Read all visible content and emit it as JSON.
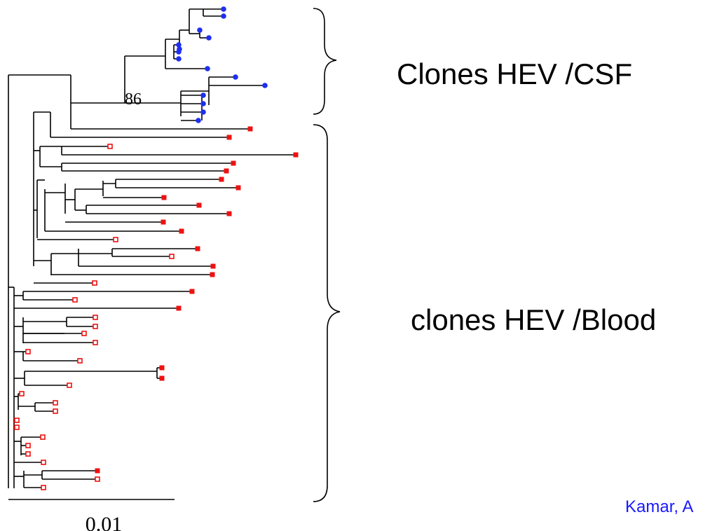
{
  "bootstrap_label": "86",
  "scale_bar_label": "0.01",
  "group_csf_label": "Clones HEV /CSF",
  "group_blood_label": "clones HEV /Blood",
  "citation": "Kamar, A",
  "colors": {
    "csf_marker": "#1f2ff0",
    "blood_marker": "#ee1111",
    "citation": "#1a1aff",
    "branch": "#000000"
  },
  "legend": {
    "csf_marker": "filled-circle",
    "blood_marker_filled": "filled-square",
    "blood_marker_open": "open-square"
  }
}
